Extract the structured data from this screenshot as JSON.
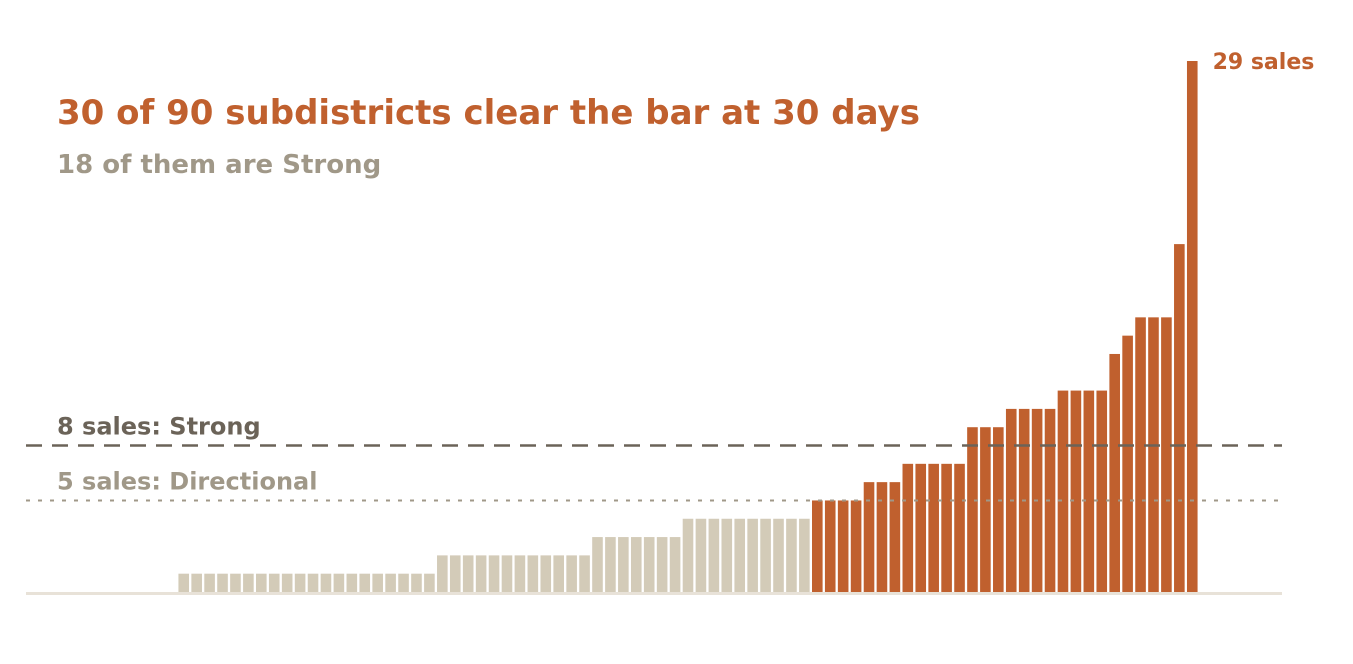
{
  "chart_data": {
    "type": "bar",
    "title": "30 of 90 subdistricts clear the bar at 30 days",
    "subtitle": "18 of them are Strong",
    "values": [
      0,
      0,
      0,
      0,
      0,
      0,
      0,
      0,
      0,
      0,
      0,
      1,
      1,
      1,
      1,
      1,
      1,
      1,
      1,
      1,
      1,
      1,
      1,
      1,
      1,
      1,
      1,
      1,
      1,
      1,
      1,
      2,
      2,
      2,
      2,
      2,
      2,
      2,
      2,
      2,
      2,
      2,
      2,
      3,
      3,
      3,
      3,
      3,
      3,
      3,
      4,
      4,
      4,
      4,
      4,
      4,
      4,
      4,
      4,
      4,
      5,
      5,
      5,
      5,
      6,
      6,
      6,
      7,
      7,
      7,
      7,
      7,
      9,
      9,
      9,
      10,
      10,
      10,
      10,
      11,
      11,
      11,
      11,
      13,
      14,
      15,
      15,
      15,
      19,
      29
    ],
    "value_labels": [
      null,
      null,
      null,
      null,
      null,
      null,
      null,
      null,
      null,
      null,
      null,
      null,
      null,
      null,
      null,
      null,
      null,
      null,
      null,
      null,
      null,
      null,
      null,
      null,
      null,
      null,
      null,
      null,
      null,
      null,
      null,
      null,
      null,
      null,
      null,
      null,
      null,
      null,
      null,
      null,
      null,
      null,
      null,
      null,
      null,
      null,
      null,
      null,
      null,
      null,
      null,
      null,
      null,
      null,
      null,
      null,
      null,
      null,
      null,
      null,
      null,
      null,
      null,
      null,
      null,
      null,
      null,
      null,
      null,
      null,
      null,
      null,
      null,
      null,
      null,
      null,
      null,
      null,
      null,
      null,
      null,
      null,
      null,
      null,
      null,
      null,
      null,
      null,
      null,
      "29 sales"
    ],
    "color": "#d3cbb8",
    "highlight_color": "#c0602e",
    "ylim": [
      0,
      29
    ],
    "reference_lines": [
      {
        "value": 8,
        "label": "8 sales: Strong",
        "style": "dashed",
        "color": "#6b6358"
      },
      {
        "value": 5,
        "label": "5 sales: Directional",
        "style": "dotted",
        "color": "#a09888"
      }
    ]
  }
}
